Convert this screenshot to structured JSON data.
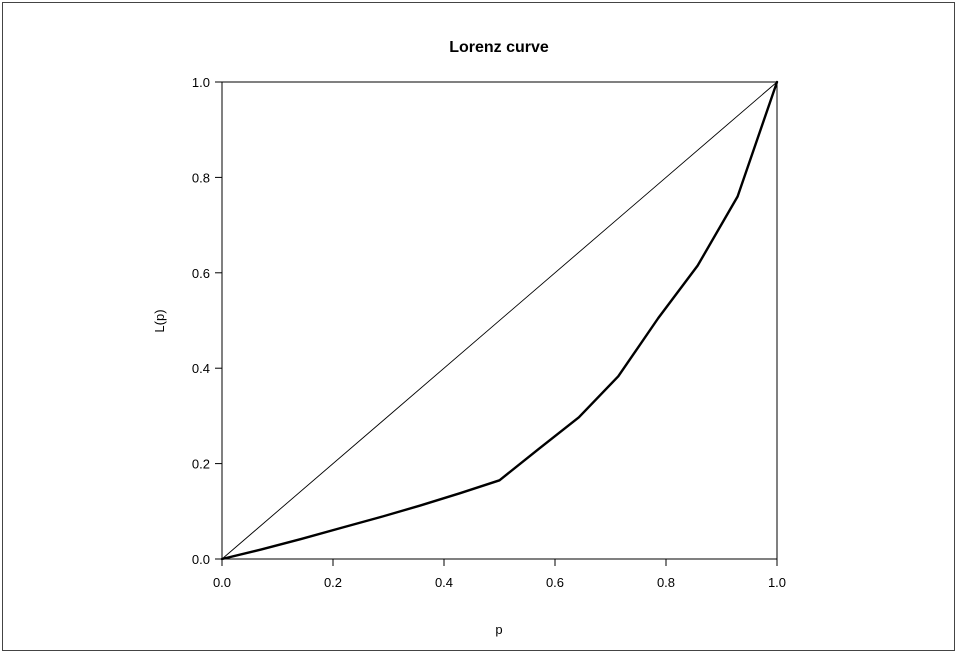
{
  "chart_data": {
    "type": "line",
    "title": "Lorenz curve",
    "xlabel": "p",
    "ylabel": "L(p)",
    "xlim": [
      0,
      1
    ],
    "ylim": [
      0,
      1
    ],
    "x_ticks": [
      "0.0",
      "0.2",
      "0.4",
      "0.6",
      "0.8",
      "1.0"
    ],
    "y_ticks": [
      "0.0",
      "0.2",
      "0.4",
      "0.6",
      "0.8",
      "1.0"
    ],
    "grid": false,
    "legend": "none",
    "series": [
      {
        "x": [
          0,
          1
        ],
        "y": [
          0,
          1
        ],
        "color": "#000000",
        "style": "thin"
      },
      {
        "x": [
          0,
          0.071,
          0.143,
          0.214,
          0.286,
          0.357,
          0.429,
          0.5,
          0.571,
          0.643,
          0.714,
          0.786,
          0.857,
          0.929,
          1
        ],
        "y": [
          0,
          0.02,
          0.042,
          0.065,
          0.088,
          0.112,
          0.138,
          0.165,
          0.231,
          0.297,
          0.383,
          0.505,
          0.615,
          0.76,
          1
        ],
        "color": "#000000",
        "style": "thick"
      }
    ]
  }
}
